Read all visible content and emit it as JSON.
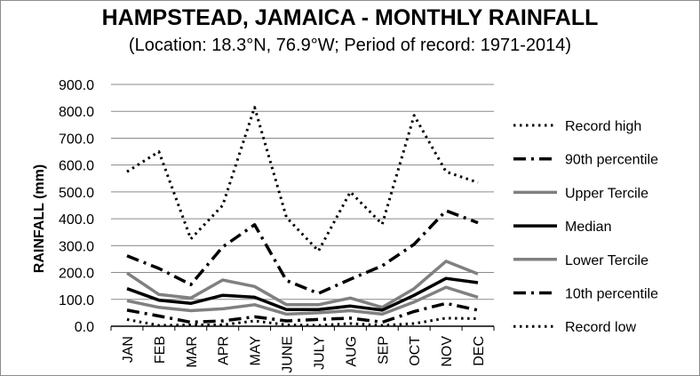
{
  "chart_data": {
    "type": "line",
    "title": "HAMPSTEAD, JAMAICA - MONTHLY RAINFALL",
    "subtitle": "(Location: 18.3°N, 76.9°W; Period of record: 1971-2014)",
    "xlabel": "",
    "ylabel": "RAINFALL (mm)",
    "ylim": [
      0,
      900
    ],
    "yticks": [
      "0.0",
      "100.0",
      "200.0",
      "300.0",
      "400.0",
      "500.0",
      "600.0",
      "700.0",
      "800.0",
      "900.0"
    ],
    "grid": true,
    "legend_position": "right",
    "categories": [
      "JAN",
      "FEB",
      "MAR",
      "APR",
      "MAY",
      "JUNE",
      "JULY",
      "AUG",
      "SEP",
      "OCT",
      "NOV",
      "DEC"
    ],
    "series": [
      {
        "name": "Record high",
        "style": "dotted",
        "color": "#000000",
        "values": [
          575,
          650,
          325,
          450,
          815,
          405,
          280,
          500,
          380,
          785,
          575,
          535
        ]
      },
      {
        "name": "90th percentile",
        "style": "dashdot",
        "color": "#000000",
        "values": [
          262,
          215,
          155,
          295,
          378,
          170,
          122,
          175,
          225,
          305,
          430,
          385
        ]
      },
      {
        "name": "Upper Tercile",
        "style": "solid",
        "color": "#808080",
        "values": [
          198,
          118,
          105,
          172,
          148,
          80,
          80,
          105,
          70,
          140,
          242,
          195
        ]
      },
      {
        "name": "Median",
        "style": "solid",
        "color": "#000000",
        "values": [
          140,
          97,
          85,
          115,
          108,
          62,
          62,
          75,
          60,
          115,
          178,
          162
        ]
      },
      {
        "name": "Lower Tercile",
        "style": "solid",
        "color": "#808080",
        "values": [
          95,
          70,
          58,
          65,
          80,
          45,
          50,
          58,
          45,
          90,
          145,
          108
        ]
      },
      {
        "name": "10th percentile",
        "style": "dashdot",
        "color": "#000000",
        "values": [
          60,
          38,
          15,
          20,
          35,
          20,
          25,
          30,
          15,
          55,
          85,
          60
        ]
      },
      {
        "name": "Record low",
        "style": "dotted",
        "color": "#000000",
        "values": [
          25,
          3,
          5,
          5,
          20,
          5,
          3,
          10,
          3,
          10,
          30,
          28
        ]
      }
    ]
  }
}
